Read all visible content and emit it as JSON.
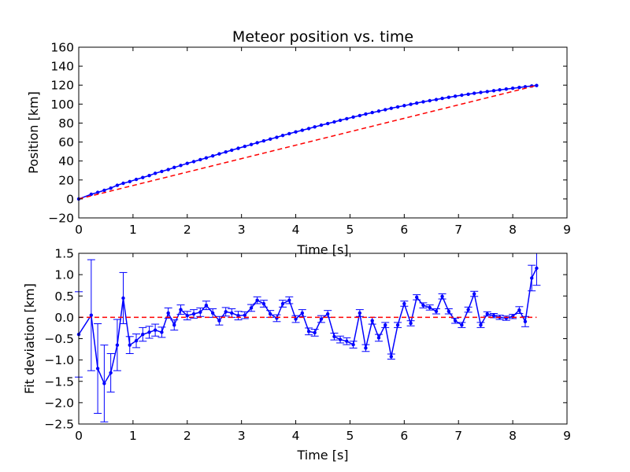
{
  "colors": {
    "series": "#0000ff",
    "fit": "#ff0000",
    "axes": "#000000",
    "background": "#ffffff"
  },
  "chart_data": [
    {
      "type": "line",
      "title": "Meteor position vs. time",
      "xlabel": "Time [s]",
      "ylabel": "Position [km]",
      "xlim": [
        0,
        9
      ],
      "ylim": [
        -20,
        160
      ],
      "xticks": [
        "0",
        "1",
        "2",
        "3",
        "4",
        "5",
        "6",
        "7",
        "8",
        "9"
      ],
      "yticks": [
        "−20",
        "0",
        "20",
        "40",
        "60",
        "80",
        "100",
        "120",
        "140",
        "160"
      ],
      "grid": false,
      "series": [
        {
          "style": "solid line with dot markers",
          "color": "#0000ff",
          "x": [
            0,
            0.23,
            0.35,
            0.47,
            0.59,
            0.71,
            0.82,
            0.94,
            1.06,
            1.18,
            1.3,
            1.41,
            1.53,
            1.65,
            1.76,
            1.88,
            2.0,
            2.12,
            2.24,
            2.35,
            2.47,
            2.59,
            2.71,
            2.82,
            2.94,
            3.06,
            3.18,
            3.29,
            3.41,
            3.53,
            3.65,
            3.76,
            3.88,
            4.0,
            4.12,
            4.24,
            4.35,
            4.47,
            4.59,
            4.71,
            4.82,
            4.94,
            5.06,
            5.18,
            5.29,
            5.41,
            5.53,
            5.65,
            5.76,
            5.88,
            6.0,
            6.12,
            6.23,
            6.35,
            6.47,
            6.59,
            6.7,
            6.82,
            6.94,
            7.06,
            7.18,
            7.29,
            7.41,
            7.53,
            7.65,
            7.76,
            7.88,
            8.0,
            8.12,
            8.23,
            8.35,
            8.44
          ],
          "y": [
            0,
            4.9,
            6.9,
            9.1,
            11.4,
            14.4,
            16.5,
            18.3,
            20.6,
            22.6,
            24.6,
            27.0,
            29.0,
            31.0,
            33.2,
            35.3,
            37.5,
            39.4,
            41.4,
            43.3,
            45.4,
            47.5,
            49.5,
            51.4,
            53.4,
            55.4,
            57.4,
            59.3,
            61.2,
            63.1,
            65.0,
            66.9,
            68.8,
            70.7,
            72.4,
            74.2,
            76.0,
            77.8,
            79.5,
            81.2,
            82.9,
            84.6,
            86.3,
            87.9,
            89.5,
            91.1,
            92.6,
            94.1,
            95.6,
            97.0,
            98.4,
            99.8,
            101.1,
            102.4,
            103.6,
            104.8,
            106.0,
            107.2,
            108.3,
            109.4,
            110.4,
            111.4,
            112.3,
            113.2,
            114.1,
            115.0,
            115.9,
            116.7,
            117.5,
            118.3,
            119.1,
            119.6
          ]
        },
        {
          "style": "red dashed fit line",
          "color": "#ff0000",
          "x": [
            0,
            8.44
          ],
          "y": [
            0,
            119.6
          ]
        }
      ]
    },
    {
      "type": "line",
      "title": "",
      "xlabel": "Time [s]",
      "ylabel": "Fit deviation [km]",
      "xlim": [
        0,
        9
      ],
      "ylim": [
        -2.5,
        1.5
      ],
      "xticks": [
        "0",
        "1",
        "2",
        "3",
        "4",
        "5",
        "6",
        "7",
        "8",
        "9"
      ],
      "yticks": [
        "−2.5",
        "−2.0",
        "−1.5",
        "−1.0",
        "−0.5",
        "0.0",
        "0.5",
        "1.0",
        "1.5"
      ],
      "grid": false,
      "series": [
        {
          "style": "line with dot markers and error bars",
          "color": "#0000ff",
          "x": [
            0.0,
            0.23,
            0.35,
            0.47,
            0.59,
            0.71,
            0.82,
            0.94,
            1.06,
            1.18,
            1.3,
            1.41,
            1.53,
            1.65,
            1.76,
            1.88,
            2.0,
            2.12,
            2.24,
            2.35,
            2.47,
            2.59,
            2.71,
            2.82,
            2.94,
            3.06,
            3.18,
            3.29,
            3.41,
            3.53,
            3.65,
            3.76,
            3.88,
            4.0,
            4.12,
            4.24,
            4.35,
            4.47,
            4.59,
            4.71,
            4.82,
            4.94,
            5.06,
            5.18,
            5.29,
            5.41,
            5.53,
            5.65,
            5.76,
            5.88,
            6.0,
            6.12,
            6.23,
            6.35,
            6.47,
            6.59,
            6.7,
            6.82,
            6.94,
            7.06,
            7.18,
            7.29,
            7.41,
            7.53,
            7.65,
            7.76,
            7.88,
            8.0,
            8.12,
            8.23,
            8.35,
            8.44
          ],
          "y": [
            -0.4,
            0.05,
            -1.2,
            -1.55,
            -1.3,
            -0.65,
            0.45,
            -0.65,
            -0.55,
            -0.4,
            -0.35,
            -0.3,
            -0.35,
            0.1,
            -0.18,
            0.18,
            0.04,
            0.08,
            0.12,
            0.28,
            0.1,
            -0.08,
            0.13,
            0.1,
            0.04,
            0.05,
            0.22,
            0.4,
            0.32,
            0.08,
            -0.02,
            0.32,
            0.4,
            -0.04,
            0.1,
            -0.33,
            -0.36,
            -0.04,
            0.08,
            -0.45,
            -0.52,
            -0.56,
            -0.64,
            0.1,
            -0.72,
            -0.08,
            -0.48,
            -0.18,
            -0.92,
            -0.18,
            0.32,
            -0.14,
            0.47,
            0.28,
            0.23,
            0.14,
            0.49,
            0.14,
            -0.08,
            -0.18,
            0.18,
            0.55,
            -0.18,
            0.08,
            0.04,
            0.0,
            -0.02,
            0.02,
            0.17,
            -0.1,
            0.92,
            1.15
          ],
          "err": [
            1.0,
            1.3,
            1.05,
            0.9,
            0.45,
            0.6,
            0.6,
            0.2,
            0.16,
            0.16,
            0.14,
            0.14,
            0.12,
            0.12,
            0.12,
            0.11,
            0.1,
            0.1,
            0.1,
            0.1,
            0.1,
            0.1,
            0.1,
            0.1,
            0.1,
            0.08,
            0.08,
            0.08,
            0.08,
            0.08,
            0.08,
            0.08,
            0.08,
            0.08,
            0.08,
            0.08,
            0.08,
            0.08,
            0.08,
            0.08,
            0.08,
            0.08,
            0.08,
            0.08,
            0.08,
            0.08,
            0.08,
            0.06,
            0.06,
            0.06,
            0.06,
            0.06,
            0.06,
            0.06,
            0.06,
            0.06,
            0.06,
            0.06,
            0.06,
            0.06,
            0.06,
            0.06,
            0.06,
            0.05,
            0.05,
            0.05,
            0.05,
            0.05,
            0.08,
            0.12,
            0.3,
            0.4
          ]
        },
        {
          "style": "red dashed zero reference line",
          "color": "#ff0000",
          "x": [
            0,
            8.44
          ],
          "y": [
            0,
            0
          ]
        }
      ]
    }
  ]
}
